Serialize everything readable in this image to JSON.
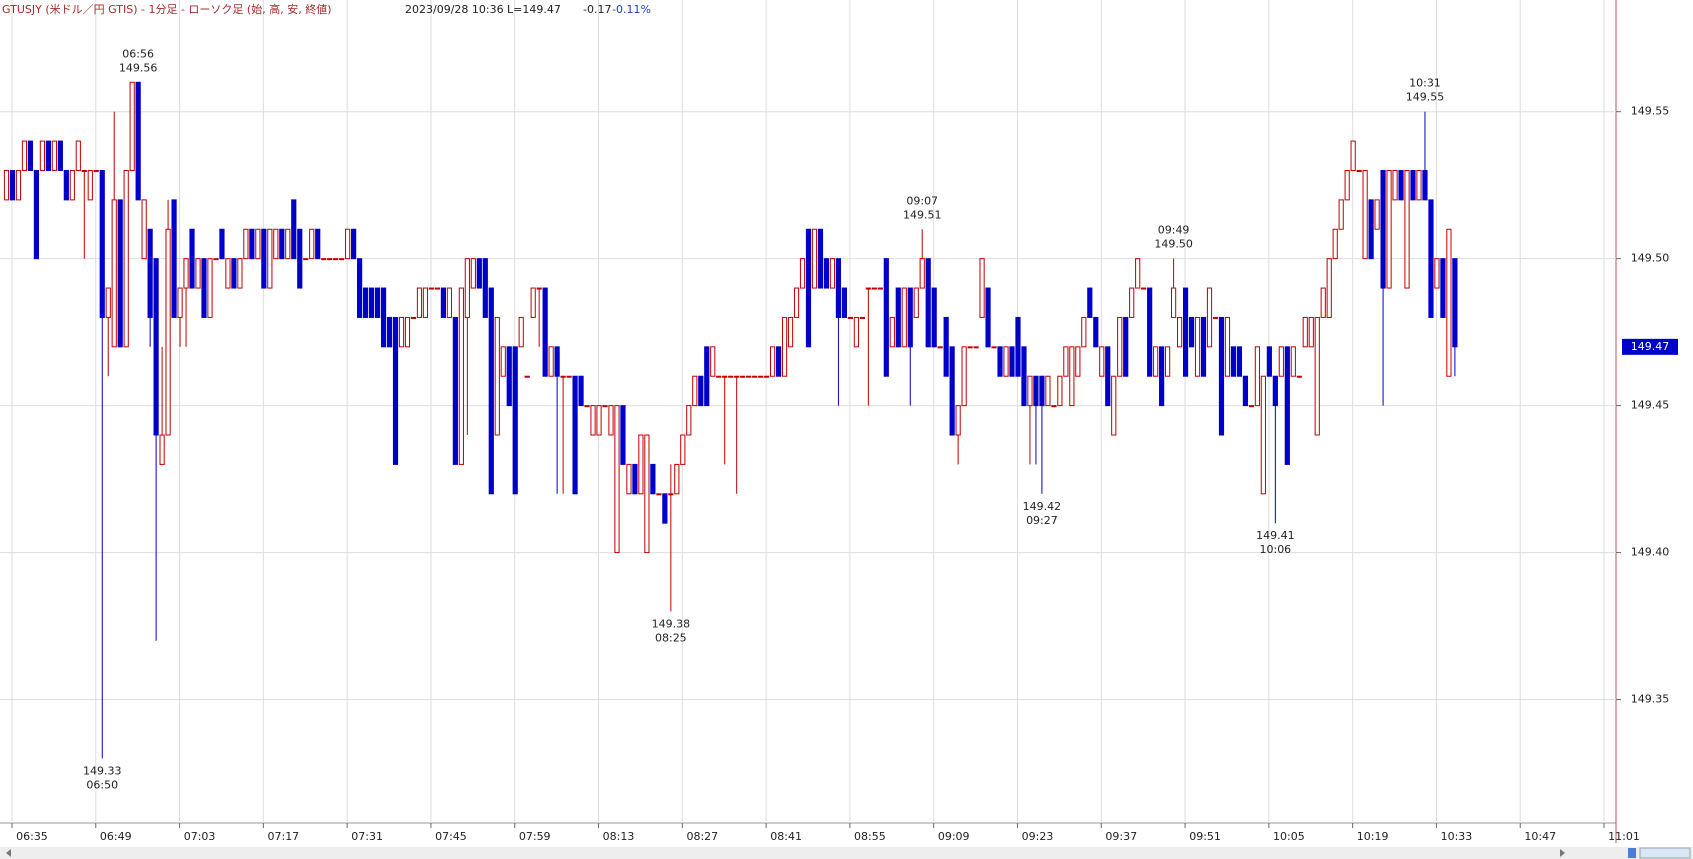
{
  "chart_data": {
    "type": "candlestick",
    "title": "GTUSJY (米ドル／円 GTIS) - 1分足 - ローソク足 (始, 高, 安, 終値)",
    "datetime": "2023/09/28 10:36",
    "last_label": "L=149.47",
    "change": "-0.17",
    "change_pct": "-0.11%",
    "up_color": "#c00000",
    "down_color": "#0000c8",
    "grid": true,
    "xlim": [
      "06:33",
      "11:03"
    ],
    "ylim": [
      149.308,
      149.588
    ],
    "yticks": [
      149.35,
      {
        "value": 149.4,
        "label": "149.40"
      },
      149.45,
      {
        "value": 149.5,
        "label": "149.50"
      },
      149.55
    ],
    "xticks": [
      "06:35",
      "06:49",
      "07:03",
      "07:17",
      "07:31",
      "07:45",
      "07:59",
      "08:13",
      "08:27",
      "08:41",
      "08:55",
      "09:09",
      "09:23",
      "09:37",
      "09:51",
      "10:05",
      "10:19",
      "10:33",
      "10:47",
      "11:01"
    ],
    "last": 149.47,
    "annotations": [
      {
        "time": "06:56",
        "price": 149.56,
        "side": "above"
      },
      {
        "time": "06:50",
        "price": 149.33,
        "side": "below"
      },
      {
        "time": "08:25",
        "price": 149.38,
        "side": "below"
      },
      {
        "time": "09:07",
        "price": 149.51,
        "side": "above"
      },
      {
        "time": "09:27",
        "price": 149.42,
        "side": "below"
      },
      {
        "time": "09:49",
        "price": {
          "value": 149.5,
          "label": "149.50"
        },
        "side": "above"
      },
      {
        "time": "10:06",
        "price": 149.41,
        "side": "below"
      },
      {
        "time": "10:31",
        "price": 149.55,
        "side": "above"
      }
    ],
    "x": [
      "06:34",
      "06:35",
      "06:36",
      "06:37",
      "06:38",
      "06:39",
      "06:40",
      "06:41",
      "06:42",
      "06:43",
      "06:44",
      "06:45",
      "06:46",
      "06:47",
      "06:48",
      "06:49",
      "06:50",
      "06:51",
      "06:52",
      "06:53",
      "06:54",
      "06:55",
      "06:56",
      "06:57",
      "06:58",
      "06:59",
      "07:00",
      "07:01",
      "07:02",
      "07:03",
      "07:04",
      "07:05",
      "07:06",
      "07:07",
      "07:08",
      "07:09",
      "07:10",
      "07:11",
      "07:12",
      "07:13",
      "07:14",
      "07:15",
      "07:16",
      "07:17",
      "07:18",
      "07:19",
      "07:20",
      "07:21",
      "07:22",
      "07:23",
      "07:24",
      "07:25",
      "07:26",
      "07:27",
      "07:28",
      "07:29",
      "07:30",
      "07:31",
      "07:32",
      "07:33",
      "07:34",
      "07:35",
      "07:36",
      "07:37",
      "07:38",
      "07:39",
      "07:40",
      "07:41",
      "07:42",
      "07:43",
      "07:44",
      "07:45",
      "07:46",
      "07:47",
      "07:48",
      "07:49",
      "07:50",
      "07:51",
      "07:52",
      "07:53",
      "07:54",
      "07:55",
      "07:56",
      "07:57",
      "07:58",
      "07:59",
      "08:00",
      "08:01",
      "08:02",
      "08:03",
      "08:04",
      "08:05",
      "08:06",
      "08:07",
      "08:08",
      "08:09",
      "08:10",
      "08:11",
      "08:12",
      "08:13",
      "08:14",
      "08:15",
      "08:16",
      "08:17",
      "08:18",
      "08:19",
      "08:20",
      "08:21",
      "08:22",
      "08:23",
      "08:24",
      "08:25",
      "08:26",
      "08:27",
      "08:28",
      "08:29",
      "08:30",
      "08:31",
      "08:32",
      "08:33",
      "08:34",
      "08:35",
      "08:36",
      "08:37",
      "08:38",
      "08:39",
      "08:40",
      "08:41",
      "08:42",
      "08:43",
      "08:44",
      "08:45",
      "08:46",
      "08:47",
      "08:48",
      "08:49",
      "08:50",
      "08:51",
      "08:52",
      "08:53",
      "08:54",
      "08:55",
      "08:56",
      "08:57",
      "08:58",
      "08:59",
      "09:00",
      "09:01",
      "09:02",
      "09:03",
      "09:04",
      "09:05",
      "09:06",
      "09:07",
      "09:08",
      "09:09",
      "09:10",
      "09:11",
      "09:12",
      "09:13",
      "09:14",
      "09:15",
      "09:16",
      "09:17",
      "09:18",
      "09:19",
      "09:20",
      "09:21",
      "09:22",
      "09:23",
      "09:24",
      "09:25",
      "09:26",
      "09:27",
      "09:28",
      "09:29",
      "09:30",
      "09:31",
      "09:32",
      "09:33",
      "09:34",
      "09:35",
      "09:36",
      "09:37",
      "09:38",
      "09:39",
      "09:40",
      "09:41",
      "09:42",
      "09:43",
      "09:44",
      "09:45",
      "09:46",
      "09:47",
      "09:48",
      "09:49",
      "09:50",
      "09:51",
      "09:52",
      "09:53",
      "09:54",
      "09:55",
      "09:56",
      "09:57",
      "09:58",
      "09:59",
      "10:00",
      "10:01",
      "10:02",
      "10:03",
      "10:04",
      "10:05",
      "10:06",
      "10:07",
      "10:08",
      "10:09",
      "10:10",
      "10:11",
      "10:12",
      "10:13",
      "10:14",
      "10:15",
      "10:16",
      "10:17",
      "10:18",
      "10:19",
      "10:20",
      "10:21",
      "10:22",
      "10:23",
      "10:24",
      "10:25",
      "10:26",
      "10:27",
      "10:28",
      "10:29",
      "10:30",
      "10:31",
      "10:32",
      "10:33",
      "10:34",
      "10:35",
      "10:36"
    ],
    "open": [
      149.52,
      149.53,
      149.52,
      149.53,
      149.54,
      149.53,
      149.53,
      149.54,
      149.53,
      149.54,
      149.53,
      149.52,
      149.53,
      149.53,
      149.52,
      149.53,
      149.53,
      149.48,
      149.47,
      149.52,
      149.47,
      149.53,
      149.56,
      149.5,
      149.51,
      149.5,
      149.43,
      149.44,
      149.52,
      149.48,
      149.49,
      149.51,
      149.49,
      149.5,
      149.48,
      149.5,
      149.51,
      149.49,
      149.5,
      149.49,
      149.5,
      149.51,
      149.5,
      149.51,
      149.49,
      149.5,
      149.51,
      149.5,
      149.52,
      149.51,
      149.5,
      149.5,
      149.51,
      149.5,
      149.5,
      149.5,
      149.5,
      149.5,
      149.51,
      149.5,
      149.49,
      149.49,
      149.49,
      149.49,
      149.48,
      149.48,
      149.47,
      149.47,
      149.48,
      149.48,
      149.48,
      149.49,
      149.49,
      149.49,
      149.48,
      149.48,
      149.43,
      149.48,
      149.49,
      149.5,
      149.5,
      149.49,
      149.44,
      149.46,
      149.47,
      149.47,
      149.47,
      149.46,
      149.48,
      149.49,
      149.49,
      149.46,
      149.47,
      149.46,
      149.46,
      149.46,
      149.46,
      149.45,
      149.44,
      149.44,
      149.45,
      149.44,
      149.4,
      149.45,
      149.42,
      149.43,
      149.42,
      149.4,
      149.43,
      149.42,
      149.42,
      149.42,
      149.42,
      149.43,
      149.44,
      149.45,
      149.46,
      149.47,
      149.46,
      149.46,
      149.46,
      149.46,
      149.46,
      149.46,
      149.46,
      149.46,
      149.46,
      149.46,
      149.46,
      149.47,
      149.46,
      149.47,
      149.48,
      149.49,
      149.51,
      149.49,
      149.51,
      149.5,
      149.49,
      149.5,
      149.49,
      149.48,
      149.47,
      149.48,
      149.49,
      149.49,
      149.49,
      149.5,
      149.47,
      149.49,
      149.47,
      149.49,
      149.48,
      149.49,
      149.5,
      149.49,
      149.47,
      149.48,
      149.47,
      149.44,
      149.45,
      149.47,
      149.47,
      149.48,
      149.49,
      149.47,
      149.47,
      149.46,
      149.47,
      149.48,
      149.47,
      149.45,
      149.46,
      149.46,
      149.45,
      149.45,
      149.45,
      149.46,
      149.45,
      149.46,
      149.47,
      149.49,
      149.48,
      149.46,
      149.47,
      149.44,
      149.46,
      149.48,
      149.48,
      149.49,
      149.49,
      149.49,
      149.46,
      149.47,
      149.46,
      149.48,
      149.47,
      149.49,
      149.48,
      149.46,
      149.48,
      149.47,
      149.48,
      149.48,
      149.46,
      149.47,
      149.47,
      149.46,
      149.45,
      149.45,
      149.42,
      149.47,
      149.46,
      149.46,
      149.47,
      149.46,
      149.46,
      149.47,
      149.47,
      149.44,
      149.48,
      149.48,
      149.5,
      149.51,
      149.52,
      149.53,
      149.53,
      149.5,
      149.52,
      149.51,
      149.53,
      149.49,
      149.52,
      149.53,
      149.49,
      149.53,
      149.52,
      149.53,
      149.52,
      149.49,
      149.5,
      149.46,
      149.5
    ],
    "high": [
      149.53,
      149.53,
      149.53,
      149.54,
      149.54,
      149.53,
      149.54,
      149.54,
      149.54,
      149.54,
      149.53,
      149.53,
      149.54,
      149.53,
      149.53,
      149.53,
      149.53,
      149.49,
      149.55,
      149.52,
      149.53,
      149.56,
      149.56,
      149.52,
      149.51,
      149.5,
      149.47,
      149.52,
      149.52,
      149.49,
      149.5,
      149.51,
      149.5,
      149.5,
      149.5,
      149.5,
      149.51,
      149.5,
      149.5,
      149.5,
      149.51,
      149.51,
      149.51,
      149.51,
      149.51,
      149.51,
      149.51,
      149.51,
      149.52,
      149.51,
      149.5,
      149.51,
      149.51,
      149.5,
      149.5,
      149.5,
      149.5,
      149.51,
      149.51,
      149.5,
      149.49,
      149.49,
      149.49,
      149.49,
      149.48,
      149.48,
      149.48,
      149.48,
      149.48,
      149.49,
      149.49,
      149.49,
      149.49,
      149.49,
      149.49,
      149.48,
      149.49,
      149.5,
      149.5,
      149.5,
      149.5,
      149.49,
      149.48,
      149.47,
      149.47,
      149.47,
      149.48,
      149.46,
      149.49,
      149.49,
      149.49,
      149.47,
      149.47,
      149.46,
      149.46,
      149.46,
      149.46,
      149.45,
      149.45,
      149.45,
      149.45,
      149.45,
      149.45,
      149.45,
      149.43,
      149.43,
      149.44,
      149.44,
      149.43,
      149.42,
      149.42,
      149.43,
      149.43,
      149.44,
      149.45,
      149.46,
      149.46,
      149.47,
      149.47,
      149.46,
      149.46,
      149.46,
      149.46,
      149.46,
      149.46,
      149.46,
      149.46,
      149.46,
      149.47,
      149.47,
      149.48,
      149.48,
      149.49,
      149.5,
      149.51,
      149.51,
      149.51,
      149.5,
      149.5,
      149.5,
      149.49,
      149.48,
      149.48,
      149.48,
      149.49,
      149.49,
      149.49,
      149.5,
      149.48,
      149.49,
      149.49,
      149.49,
      149.49,
      149.51,
      149.5,
      149.49,
      149.47,
      149.48,
      149.47,
      149.45,
      149.47,
      149.47,
      149.47,
      149.5,
      149.49,
      149.47,
      149.47,
      149.47,
      149.47,
      149.48,
      149.47,
      149.46,
      149.46,
      149.46,
      149.46,
      149.45,
      149.46,
      149.47,
      149.47,
      149.47,
      149.48,
      149.49,
      149.48,
      149.47,
      149.47,
      149.46,
      149.48,
      149.48,
      149.49,
      149.5,
      149.49,
      149.49,
      149.47,
      149.47,
      149.47,
      149.5,
      149.48,
      149.49,
      149.48,
      149.48,
      149.48,
      149.49,
      149.48,
      149.48,
      149.48,
      149.47,
      149.47,
      149.46,
      149.45,
      149.47,
      149.46,
      149.47,
      149.46,
      149.47,
      149.47,
      149.47,
      149.46,
      149.48,
      149.48,
      149.48,
      149.49,
      149.5,
      149.51,
      149.52,
      149.53,
      149.54,
      149.53,
      149.53,
      149.52,
      149.52,
      149.53,
      149.53,
      149.53,
      149.53,
      149.53,
      149.53,
      149.53,
      149.55,
      149.52,
      149.5,
      149.5,
      149.51,
      149.5
    ],
    "low": [
      149.52,
      149.52,
      149.52,
      149.53,
      149.53,
      149.5,
      149.53,
      149.53,
      149.53,
      149.53,
      149.52,
      149.52,
      149.53,
      149.5,
      149.52,
      149.53,
      149.33,
      149.46,
      149.47,
      149.47,
      149.47,
      149.53,
      149.52,
      149.5,
      149.47,
      149.37,
      149.43,
      149.44,
      149.48,
      149.47,
      149.47,
      149.49,
      149.49,
      149.48,
      149.48,
      149.5,
      149.5,
      149.49,
      149.49,
      149.49,
      149.5,
      149.5,
      149.5,
      149.49,
      149.49,
      149.5,
      149.5,
      149.5,
      149.5,
      149.49,
      149.5,
      149.5,
      149.5,
      149.5,
      149.5,
      149.5,
      149.5,
      149.5,
      149.5,
      149.48,
      149.48,
      149.48,
      149.48,
      149.47,
      149.47,
      149.43,
      149.47,
      149.47,
      149.48,
      149.48,
      149.48,
      149.49,
      149.49,
      149.48,
      149.48,
      149.43,
      149.43,
      149.44,
      149.49,
      149.49,
      149.48,
      149.42,
      149.44,
      149.46,
      149.45,
      149.42,
      149.47,
      149.46,
      149.48,
      149.47,
      149.46,
      149.46,
      149.42,
      149.42,
      149.46,
      149.42,
      149.45,
      149.45,
      149.44,
      149.44,
      149.45,
      149.44,
      149.4,
      149.43,
      149.42,
      149.42,
      149.42,
      149.4,
      149.42,
      149.42,
      149.41,
      149.38,
      149.42,
      149.43,
      149.44,
      149.45,
      149.45,
      149.45,
      149.46,
      149.46,
      149.43,
      149.46,
      149.42,
      149.46,
      149.46,
      149.46,
      149.46,
      149.46,
      149.46,
      149.46,
      149.46,
      149.47,
      149.48,
      149.49,
      149.47,
      149.49,
      149.49,
      149.49,
      149.49,
      149.45,
      149.48,
      149.48,
      149.47,
      149.48,
      149.45,
      149.49,
      149.49,
      149.46,
      149.47,
      149.47,
      149.47,
      149.45,
      149.48,
      149.49,
      149.47,
      149.47,
      149.47,
      149.46,
      149.44,
      149.43,
      149.45,
      149.47,
      149.47,
      149.48,
      149.47,
      149.47,
      149.46,
      149.46,
      149.46,
      149.46,
      149.45,
      149.43,
      149.43,
      149.42,
      149.45,
      149.45,
      149.45,
      149.46,
      149.45,
      149.46,
      149.47,
      149.48,
      149.47,
      149.46,
      149.45,
      149.44,
      149.46,
      149.46,
      149.48,
      149.49,
      149.49,
      149.46,
      149.46,
      149.45,
      149.46,
      149.48,
      149.47,
      149.46,
      149.47,
      149.46,
      149.46,
      149.47,
      149.48,
      149.44,
      149.46,
      149.46,
      149.46,
      149.45,
      149.45,
      149.45,
      149.42,
      149.46,
      149.41,
      149.46,
      149.43,
      149.46,
      149.46,
      149.47,
      149.47,
      149.44,
      149.48,
      149.48,
      149.5,
      149.51,
      149.52,
      149.53,
      149.53,
      149.5,
      149.5,
      149.51,
      149.45,
      149.49,
      149.52,
      149.52,
      149.49,
      149.52,
      149.52,
      149.52,
      149.48,
      149.49,
      149.48,
      149.46,
      149.46
    ],
    "close": [
      149.53,
      149.52,
      149.53,
      149.54,
      149.53,
      149.5,
      149.54,
      149.53,
      149.54,
      149.53,
      149.52,
      149.53,
      149.54,
      149.53,
      149.53,
      149.53,
      149.48,
      149.49,
      149.52,
      149.47,
      149.53,
      149.56,
      149.52,
      149.52,
      149.48,
      149.44,
      149.44,
      149.51,
      149.48,
      149.49,
      149.5,
      149.49,
      149.5,
      149.48,
      149.5,
      149.5,
      149.5,
      149.5,
      149.49,
      149.5,
      149.51,
      149.5,
      149.51,
      149.49,
      149.51,
      149.51,
      149.5,
      149.51,
      149.5,
      149.49,
      149.5,
      149.51,
      149.5,
      149.5,
      149.5,
      149.5,
      149.5,
      149.51,
      149.5,
      149.48,
      149.48,
      149.48,
      149.48,
      149.47,
      149.47,
      149.43,
      149.48,
      149.48,
      149.48,
      149.49,
      149.49,
      149.49,
      149.49,
      149.48,
      149.49,
      149.43,
      149.49,
      149.5,
      149.5,
      149.49,
      149.48,
      149.42,
      149.48,
      149.47,
      149.45,
      149.42,
      149.48,
      149.46,
      149.49,
      149.49,
      149.46,
      149.47,
      149.46,
      149.46,
      149.46,
      149.42,
      149.45,
      149.45,
      149.45,
      149.45,
      149.45,
      149.45,
      149.45,
      149.43,
      149.43,
      149.42,
      149.44,
      149.44,
      149.42,
      149.42,
      149.41,
      149.42,
      149.43,
      149.44,
      149.45,
      149.46,
      149.45,
      149.45,
      149.47,
      149.46,
      149.46,
      149.46,
      149.46,
      149.46,
      149.46,
      149.46,
      149.46,
      149.46,
      149.47,
      149.46,
      149.48,
      149.48,
      149.49,
      149.5,
      149.47,
      149.51,
      149.49,
      149.49,
      149.5,
      149.48,
      149.48,
      149.48,
      149.48,
      149.48,
      149.49,
      149.49,
      149.49,
      149.46,
      149.48,
      149.47,
      149.49,
      149.47,
      149.49,
      149.5,
      149.47,
      149.47,
      149.47,
      149.46,
      149.44,
      149.45,
      149.47,
      149.47,
      149.47,
      149.5,
      149.47,
      149.47,
      149.46,
      149.47,
      149.46,
      149.46,
      149.45,
      149.46,
      149.45,
      149.45,
      149.46,
      149.45,
      149.46,
      149.47,
      149.47,
      149.47,
      149.48,
      149.48,
      149.47,
      149.47,
      149.45,
      149.46,
      149.48,
      149.46,
      149.49,
      149.5,
      149.49,
      149.46,
      149.47,
      149.45,
      149.47,
      149.49,
      149.48,
      149.46,
      149.47,
      149.48,
      149.46,
      149.49,
      149.48,
      149.44,
      149.48,
      149.46,
      149.46,
      149.45,
      149.45,
      149.47,
      149.46,
      149.46,
      149.45,
      149.47,
      149.43,
      149.47,
      149.46,
      149.48,
      149.48,
      149.48,
      149.49,
      149.5,
      149.51,
      149.52,
      149.53,
      149.54,
      149.53,
      149.53,
      149.5,
      149.52,
      149.49,
      149.53,
      149.53,
      149.52,
      149.53,
      149.52,
      149.53,
      149.52,
      149.48,
      149.5,
      149.48,
      149.51,
      149.47
    ]
  }
}
